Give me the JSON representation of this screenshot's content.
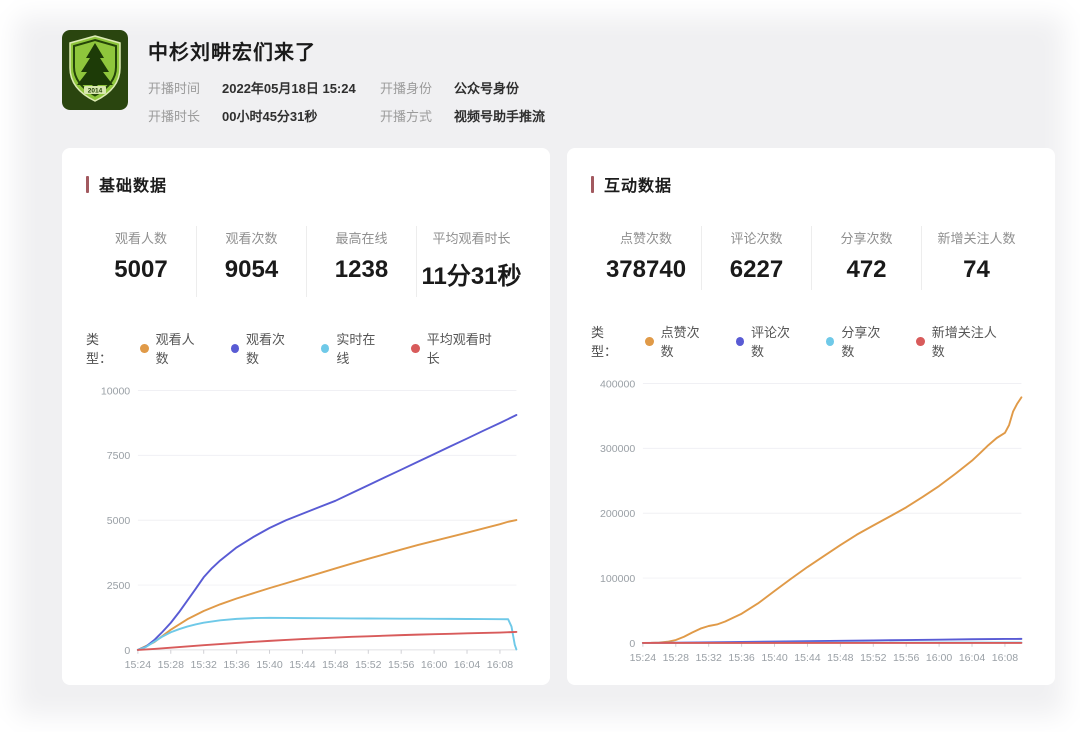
{
  "header": {
    "title": "中杉刘畊宏们来了",
    "avatar_year": "2014",
    "info": [
      {
        "label": "开播时间",
        "value": "2022年05月18日 15:24"
      },
      {
        "label": "开播时长",
        "value": "00小时45分31秒"
      },
      {
        "label": "开播身份",
        "value": "公众号身份"
      },
      {
        "label": "开播方式",
        "value": "视频号助手推流"
      }
    ]
  },
  "cards": [
    {
      "title": "基础数据",
      "legend_label": "类型：",
      "stats": [
        {
          "label": "观看人数",
          "value": "5007"
        },
        {
          "label": "观看次数",
          "value": "9054"
        },
        {
          "label": "最高在线",
          "value": "1238"
        },
        {
          "label": "平均观看时长",
          "value": "11分31秒"
        }
      ]
    },
    {
      "title": "互动数据",
      "legend_label": "类型：",
      "stats": [
        {
          "label": "点赞次数",
          "value": "378740"
        },
        {
          "label": "评论次数",
          "value": "6227"
        },
        {
          "label": "分享次数",
          "value": "472"
        },
        {
          "label": "新增关注人数",
          "value": "74"
        }
      ]
    }
  ],
  "colors": {
    "accent": "#a2595f",
    "series_orange": "#e09a48",
    "series_blue": "#595bd4",
    "series_cyan": "#6fc9e8",
    "series_red": "#d85b5b",
    "axis_text": "#9aa0a6",
    "grid_line": "#f0f0f4",
    "axis_line": "#e0e0e4"
  },
  "chart_data": [
    {
      "type": "line",
      "grid": true,
      "legend_position": "top",
      "x_range": [
        0,
        46
      ],
      "x_tick_minutes": [
        0,
        4,
        8,
        12,
        16,
        20,
        24,
        28,
        32,
        36,
        40,
        44
      ],
      "x_tick_labels": [
        "15:24",
        "15:28",
        "15:32",
        "15:36",
        "15:40",
        "15:44",
        "15:48",
        "15:52",
        "15:56",
        "16:00",
        "16:04",
        "16:08"
      ],
      "ylim": [
        0,
        10000
      ],
      "y_ticks": [
        0,
        2500,
        5000,
        7500,
        10000
      ],
      "series": [
        {
          "name": "观看人数",
          "color": "#e09a48",
          "final_value": 5007,
          "points": [
            [
              0,
              0
            ],
            [
              2,
              300
            ],
            [
              4,
              780
            ],
            [
              6,
              1180
            ],
            [
              8,
              1500
            ],
            [
              10,
              1760
            ],
            [
              12,
              1980
            ],
            [
              14,
              2180
            ],
            [
              16,
              2380
            ],
            [
              18,
              2570
            ],
            [
              20,
              2760
            ],
            [
              22,
              2950
            ],
            [
              24,
              3140
            ],
            [
              26,
              3330
            ],
            [
              28,
              3510
            ],
            [
              30,
              3690
            ],
            [
              32,
              3870
            ],
            [
              34,
              4040
            ],
            [
              36,
              4200
            ],
            [
              38,
              4360
            ],
            [
              40,
              4520
            ],
            [
              42,
              4680
            ],
            [
              44,
              4850
            ],
            [
              45,
              4940
            ],
            [
              46,
              5007
            ]
          ]
        },
        {
          "name": "观看次数",
          "color": "#595bd4",
          "final_value": 9054,
          "points": [
            [
              0,
              0
            ],
            [
              1,
              130
            ],
            [
              2,
              380
            ],
            [
              3,
              700
            ],
            [
              4,
              1050
            ],
            [
              5,
              1450
            ],
            [
              6,
              1900
            ],
            [
              7,
              2350
            ],
            [
              8,
              2800
            ],
            [
              9,
              3150
            ],
            [
              10,
              3450
            ],
            [
              12,
              3950
            ],
            [
              14,
              4350
            ],
            [
              16,
              4700
            ],
            [
              18,
              5000
            ],
            [
              20,
              5250
            ],
            [
              22,
              5500
            ],
            [
              24,
              5750
            ],
            [
              26,
              6050
            ],
            [
              28,
              6350
            ],
            [
              30,
              6650
            ],
            [
              32,
              6950
            ],
            [
              34,
              7250
            ],
            [
              36,
              7550
            ],
            [
              38,
              7850
            ],
            [
              40,
              8150
            ],
            [
              42,
              8450
            ],
            [
              44,
              8750
            ],
            [
              45,
              8900
            ],
            [
              46,
              9054
            ]
          ]
        },
        {
          "name": "实时在线",
          "color": "#6fc9e8",
          "final_value": 1238,
          "points": [
            [
              0,
              0
            ],
            [
              1,
              120
            ],
            [
              2,
              320
            ],
            [
              3,
              520
            ],
            [
              4,
              680
            ],
            [
              5,
              800
            ],
            [
              6,
              900
            ],
            [
              7,
              980
            ],
            [
              8,
              1050
            ],
            [
              10,
              1140
            ],
            [
              12,
              1195
            ],
            [
              14,
              1225
            ],
            [
              16,
              1238
            ],
            [
              18,
              1232
            ],
            [
              20,
              1227
            ],
            [
              22,
              1223
            ],
            [
              24,
              1219
            ],
            [
              26,
              1215
            ],
            [
              28,
              1211
            ],
            [
              30,
              1208
            ],
            [
              32,
              1205
            ],
            [
              34,
              1202
            ],
            [
              36,
              1199
            ],
            [
              38,
              1196
            ],
            [
              40,
              1193
            ],
            [
              42,
              1190
            ],
            [
              44,
              1186
            ],
            [
              45,
              1183
            ],
            [
              45.4,
              900
            ],
            [
              45.8,
              200
            ],
            [
              46,
              20
            ]
          ]
        },
        {
          "name": "平均观看时长",
          "color": "#d85b5b",
          "final_value": 691,
          "points": [
            [
              0,
              0
            ],
            [
              2,
              38
            ],
            [
              4,
              85
            ],
            [
              6,
              133
            ],
            [
              8,
              180
            ],
            [
              10,
              226
            ],
            [
              12,
              270
            ],
            [
              14,
              311
            ],
            [
              16,
              349
            ],
            [
              18,
              385
            ],
            [
              20,
              418
            ],
            [
              22,
              449
            ],
            [
              24,
              477
            ],
            [
              26,
              503
            ],
            [
              28,
              527
            ],
            [
              30,
              549
            ],
            [
              32,
              570
            ],
            [
              34,
              589
            ],
            [
              36,
              607
            ],
            [
              38,
              624
            ],
            [
              40,
              640
            ],
            [
              42,
              656
            ],
            [
              44,
              672
            ],
            [
              46,
              691
            ]
          ]
        }
      ]
    },
    {
      "type": "line",
      "grid": true,
      "legend_position": "top",
      "x_range": [
        0,
        46
      ],
      "x_tick_minutes": [
        0,
        4,
        8,
        12,
        16,
        20,
        24,
        28,
        32,
        36,
        40,
        44
      ],
      "x_tick_labels": [
        "15:24",
        "15:28",
        "15:32",
        "15:36",
        "15:40",
        "15:44",
        "15:48",
        "15:52",
        "15:56",
        "16:00",
        "16:04",
        "16:08"
      ],
      "ylim": [
        0,
        400000
      ],
      "y_ticks": [
        0,
        100000,
        200000,
        300000,
        400000
      ],
      "series": [
        {
          "name": "点赞次数",
          "color": "#e09a48",
          "final_value": 378740,
          "points": [
            [
              0,
              0
            ],
            [
              1,
              100
            ],
            [
              2,
              600
            ],
            [
              3,
              1800
            ],
            [
              4,
              4500
            ],
            [
              5,
              9500
            ],
            [
              6,
              16000
            ],
            [
              7,
              22000
            ],
            [
              8,
              26000
            ],
            [
              9,
              28500
            ],
            [
              10,
              33000
            ],
            [
              11,
              39000
            ],
            [
              12,
              45000
            ],
            [
              14,
              61000
            ],
            [
              16,
              80000
            ],
            [
              18,
              99000
            ],
            [
              20,
              117000
            ],
            [
              22,
              134000
            ],
            [
              24,
              151000
            ],
            [
              26,
              167000
            ],
            [
              28,
              181000
            ],
            [
              30,
              195000
            ],
            [
              32,
              209000
            ],
            [
              34,
              225000
            ],
            [
              36,
              242000
            ],
            [
              38,
              261000
            ],
            [
              40,
              281000
            ],
            [
              41,
              293000
            ],
            [
              42,
              305000
            ],
            [
              43,
              316000
            ],
            [
              44,
              324000
            ],
            [
              44.5,
              336000
            ],
            [
              45,
              357000
            ],
            [
              45.5,
              369000
            ],
            [
              46,
              378740
            ]
          ]
        },
        {
          "name": "评论次数",
          "color": "#595bd4",
          "final_value": 6227,
          "points": [
            [
              0,
              0
            ],
            [
              4,
              350
            ],
            [
              8,
              850
            ],
            [
              12,
              1450
            ],
            [
              16,
              2050
            ],
            [
              20,
              2650
            ],
            [
              24,
              3250
            ],
            [
              28,
              3900
            ],
            [
              32,
              4500
            ],
            [
              36,
              5100
            ],
            [
              40,
              5650
            ],
            [
              44,
              6100
            ],
            [
              46,
              6227
            ]
          ]
        },
        {
          "name": "分享次数",
          "color": "#6fc9e8",
          "final_value": 472,
          "points": [
            [
              0,
              0
            ],
            [
              12,
              120
            ],
            [
              24,
              250
            ],
            [
              36,
              380
            ],
            [
              46,
              472
            ]
          ]
        },
        {
          "name": "新增关注人数",
          "color": "#d85b5b",
          "final_value": 74,
          "points": [
            [
              0,
              0
            ],
            [
              23,
              40
            ],
            [
              46,
              74
            ]
          ]
        }
      ]
    }
  ]
}
